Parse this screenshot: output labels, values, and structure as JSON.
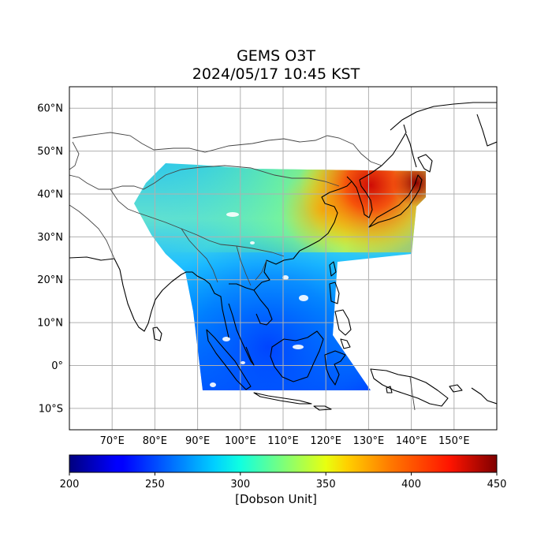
{
  "title_line1": "GEMS O3T",
  "title_line2": "2024/05/17 10:45 KST",
  "map": {
    "lon_range": [
      60,
      160
    ],
    "lat_range": [
      -15,
      65
    ],
    "lon_ticks": [
      {
        "value": 70,
        "label": "70°E"
      },
      {
        "value": 80,
        "label": "80°E"
      },
      {
        "value": 90,
        "label": "90°E"
      },
      {
        "value": 100,
        "label": "100°E"
      },
      {
        "value": 110,
        "label": "110°E"
      },
      {
        "value": 120,
        "label": "120°E"
      },
      {
        "value": 130,
        "label": "130°E"
      },
      {
        "value": 140,
        "label": "140°E"
      },
      {
        "value": 150,
        "label": "150°E"
      }
    ],
    "lat_ticks": [
      {
        "value": 60,
        "label": "60°N"
      },
      {
        "value": 50,
        "label": "50°N"
      },
      {
        "value": 40,
        "label": "40°N"
      },
      {
        "value": 30,
        "label": "30°N"
      },
      {
        "value": 20,
        "label": "20°N"
      },
      {
        "value": 10,
        "label": "10°N"
      },
      {
        "value": 0,
        "label": "0°"
      },
      {
        "value": -10,
        "label": "10°S"
      }
    ],
    "grid": true
  },
  "colorbar": {
    "min": 200,
    "max": 450,
    "ticks": [
      "200",
      "250",
      "300",
      "350",
      "400",
      "450"
    ],
    "label": "[Dobson Unit]",
    "colormap": "jet"
  },
  "colors": {
    "gridline": "#b0b0b0",
    "coastline": "#000000",
    "border": "#555555"
  }
}
